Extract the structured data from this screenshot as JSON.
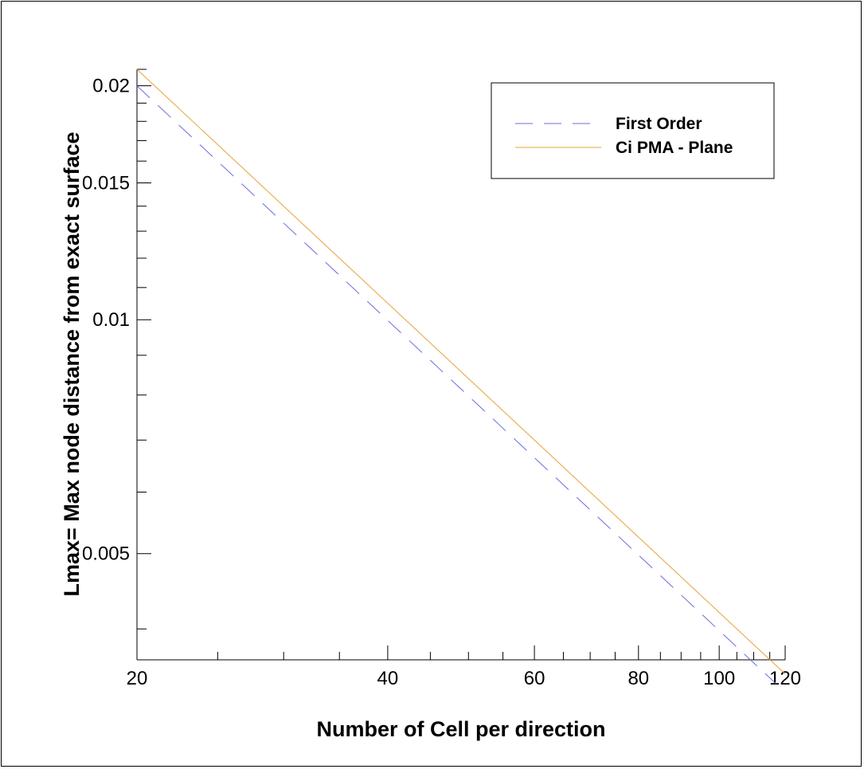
{
  "chart_data": {
    "type": "line",
    "title": "",
    "xlabel": "Number of Cell per direction",
    "ylabel": "Lmax= Max node distance from exact surface",
    "x_scale": "log",
    "y_scale": "log",
    "xlim": [
      20,
      120
    ],
    "ylim": [
      0.00365,
      0.021
    ],
    "x_ticks": [
      20,
      40,
      60,
      80,
      100,
      120
    ],
    "x_tick_labels": [
      "20",
      "40",
      "60",
      "80",
      "100",
      "120"
    ],
    "y_ticks": [
      0.005,
      0.01,
      0.015,
      0.02
    ],
    "y_tick_labels": [
      "0.005",
      "0.01",
      "0.015",
      "0.02"
    ],
    "grid": false,
    "legend_position": "top-right",
    "series": [
      {
        "name": "First Order",
        "style": "dashed",
        "color": "#6b6bdc",
        "x": [
          20,
          117
        ],
        "y": [
          0.02,
          0.0034
        ]
      },
      {
        "name": "Ci PMA - Plane",
        "style": "solid",
        "color": "#e8a13a",
        "x": [
          20,
          120
        ],
        "y": [
          0.021,
          0.0035
        ]
      }
    ]
  }
}
